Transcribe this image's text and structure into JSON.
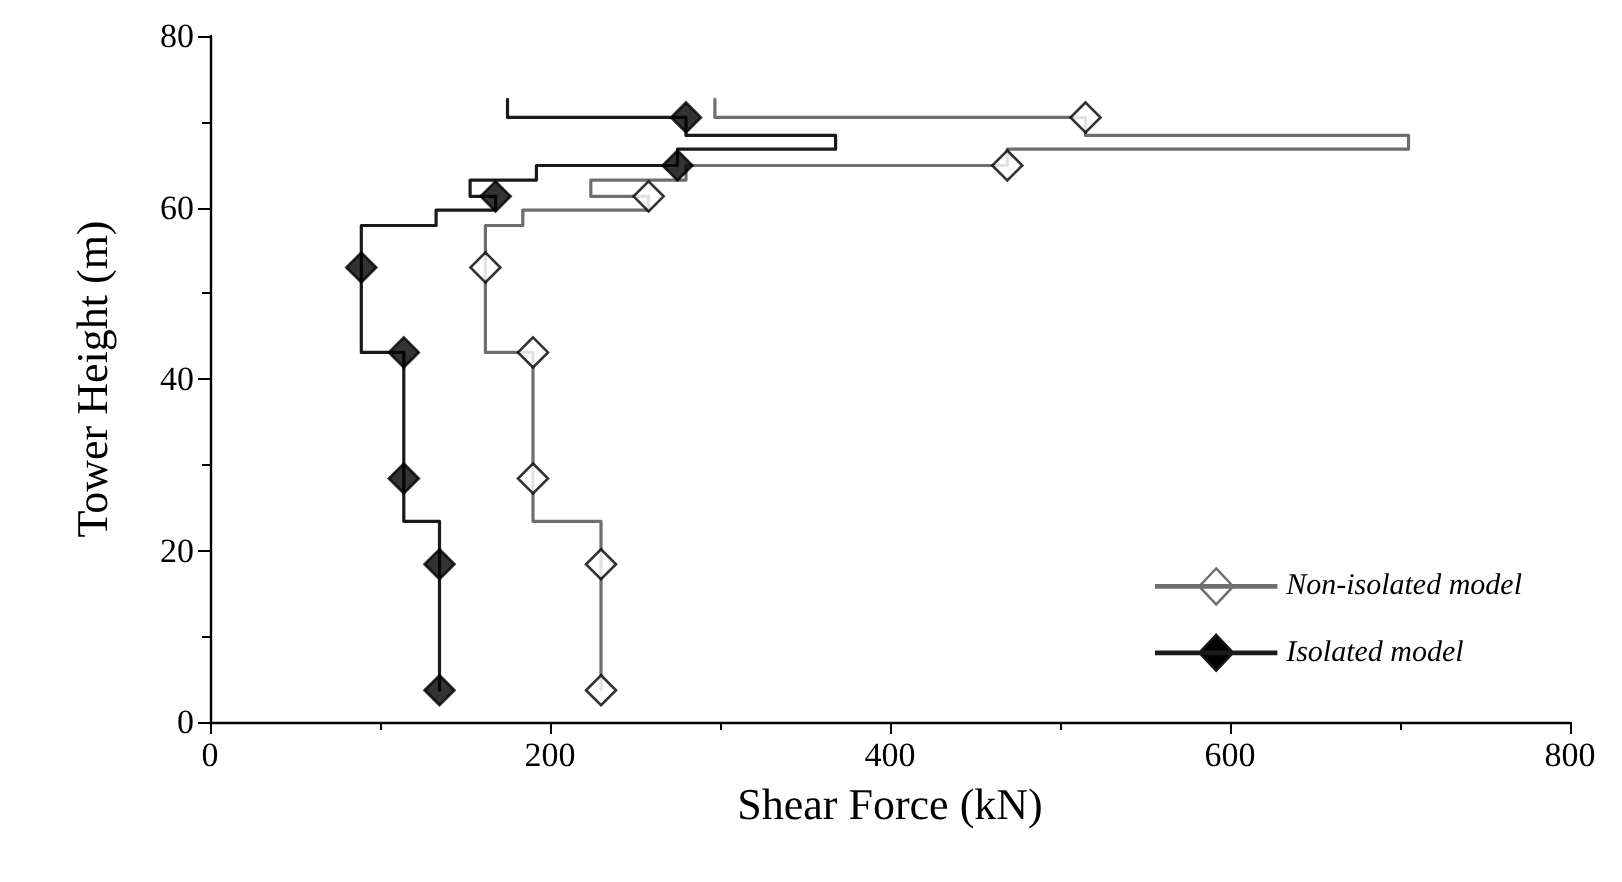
{
  "chart_data": {
    "type": "line",
    "xlabel": "Shear Force (kN)",
    "ylabel": "Tower Height (m)",
    "xlim": [
      0,
      800
    ],
    "ylim": [
      0,
      80
    ],
    "xticks": [
      0,
      200,
      400,
      600,
      800
    ],
    "yticks": [
      0,
      20,
      40,
      60,
      80
    ],
    "grid": false,
    "legend": "bottom right",
    "line_style": "solid",
    "series": [
      {
        "name": "Non-isolated model",
        "color": "#6e6e6e",
        "marker": "none",
        "x": [
          297,
          297,
          515,
          515,
          705,
          705,
          469,
          469,
          280,
          280,
          224,
          224,
          258,
          258,
          184,
          184,
          162,
          162,
          162,
          190,
          190,
          190,
          230,
          230,
          230
        ],
        "values": [
          72.6,
          70.5,
          70.5,
          68.4,
          68.4,
          66.8,
          66.8,
          64.9,
          64.9,
          63.2,
          63.2,
          61.3,
          61.3,
          59.7,
          59.7,
          57.9,
          57.9,
          53,
          43.1,
          43.1,
          28.4,
          23.4,
          23.4,
          18.4,
          3.7
        ]
      },
      {
        "type": "scatter",
        "color": "#ffffff",
        "marker": "diamond",
        "x": [
          515,
          469,
          258,
          162,
          190,
          190,
          230,
          230
        ],
        "values": [
          70.5,
          64.9,
          61.3,
          53,
          43.1,
          28.4,
          18.4,
          3.7
        ]
      },
      {
        "name": "Isolated model",
        "color": "#1a1a1a",
        "marker": "none",
        "x": [
          175,
          175,
          280,
          280,
          368,
          368,
          275,
          275,
          192,
          192,
          153,
          153,
          168,
          168,
          133,
          133,
          89,
          89,
          89,
          114,
          114,
          114,
          135,
          135,
          135
        ],
        "values": [
          72.6,
          70.5,
          70.5,
          68.4,
          68.4,
          66.8,
          66.8,
          64.9,
          64.9,
          63.2,
          63.2,
          61.3,
          61.3,
          59.7,
          59.7,
          57.9,
          57.9,
          53,
          43.1,
          43.1,
          28.4,
          23.4,
          23.4,
          18.4,
          3.7
        ]
      },
      {
        "type": "scatter",
        "color": "#000000",
        "marker": "diamond",
        "x": [
          280,
          275,
          168,
          89,
          114,
          114,
          135,
          135
        ],
        "values": [
          70.5,
          64.9,
          61.3,
          53,
          43.1,
          28.4,
          18.4,
          3.7
        ]
      }
    ]
  }
}
